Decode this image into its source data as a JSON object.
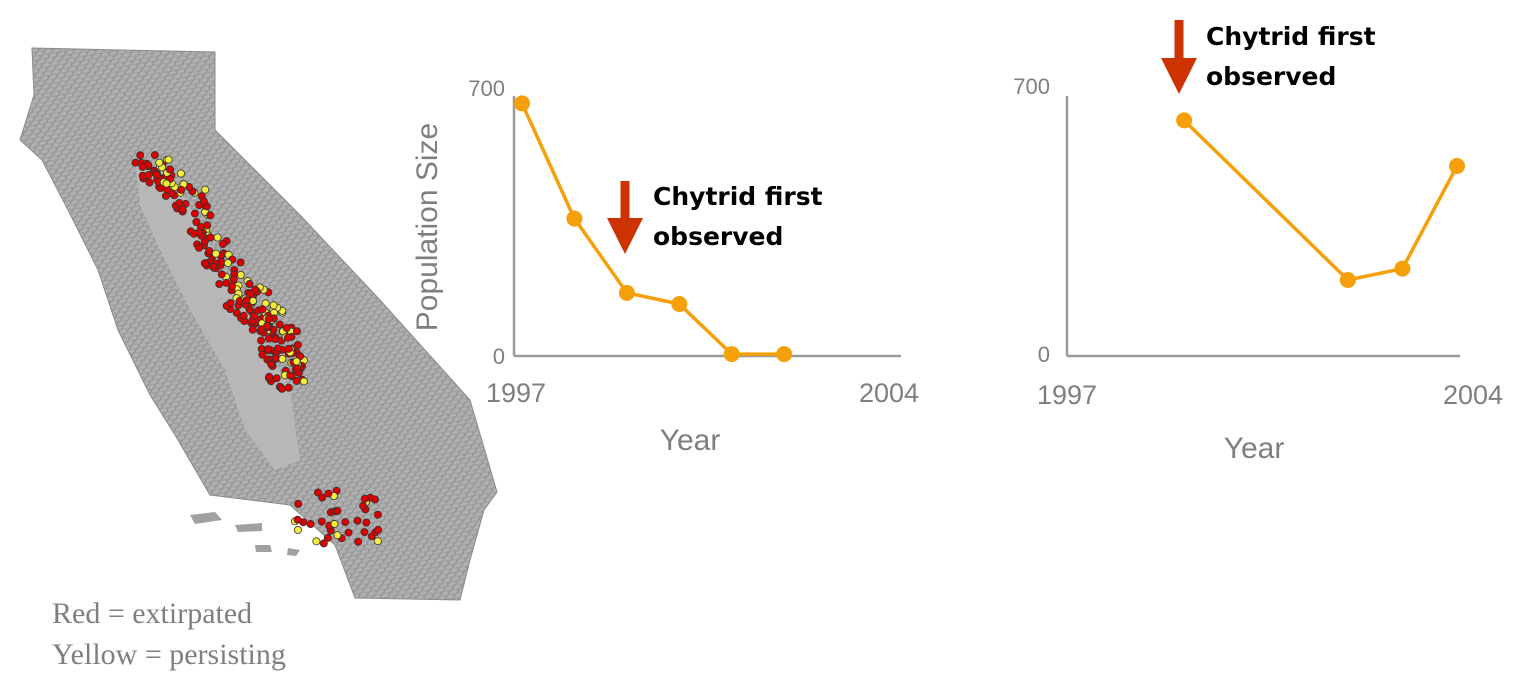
{
  "map": {
    "legend": {
      "line1": "Red = extirpated",
      "line2": "Yellow = persisting"
    },
    "colors": {
      "extirpated": "#dd0000",
      "persisting": "#f4ee3a",
      "terrain": "#a9a9a9"
    }
  },
  "chart_data": [
    {
      "type": "line",
      "title": "",
      "xlabel": "Year",
      "ylabel": "Population Size",
      "x": [
        1997,
        1998,
        1999,
        2000,
        2001,
        2002
      ],
      "values": [
        680,
        370,
        170,
        140,
        5,
        5
      ],
      "xlim": [
        1997,
        2004
      ],
      "ylim": [
        0,
        700
      ],
      "x_ticks": [
        "1997",
        "2004"
      ],
      "y_ticks": [
        "0",
        "700"
      ],
      "grid": false,
      "annotation": {
        "line1": "Chytrid first",
        "line2": "observed",
        "year": 1999
      },
      "colors": {
        "line": "#f5a00a",
        "arrow": "#cc3300"
      }
    },
    {
      "type": "line",
      "title": "",
      "xlabel": "Year",
      "ylabel": "",
      "x": [
        1999,
        2002,
        2003,
        2004
      ],
      "values": [
        620,
        200,
        230,
        500
      ],
      "xlim": [
        1997,
        2004
      ],
      "ylim": [
        0,
        700
      ],
      "x_ticks": [
        "1997",
        "2004"
      ],
      "y_ticks": [
        "0",
        "700"
      ],
      "grid": false,
      "annotation": {
        "line1": "Chytrid first",
        "line2": "observed",
        "year": 1999
      },
      "colors": {
        "line": "#f5a00a",
        "arrow": "#cc3300"
      }
    }
  ]
}
